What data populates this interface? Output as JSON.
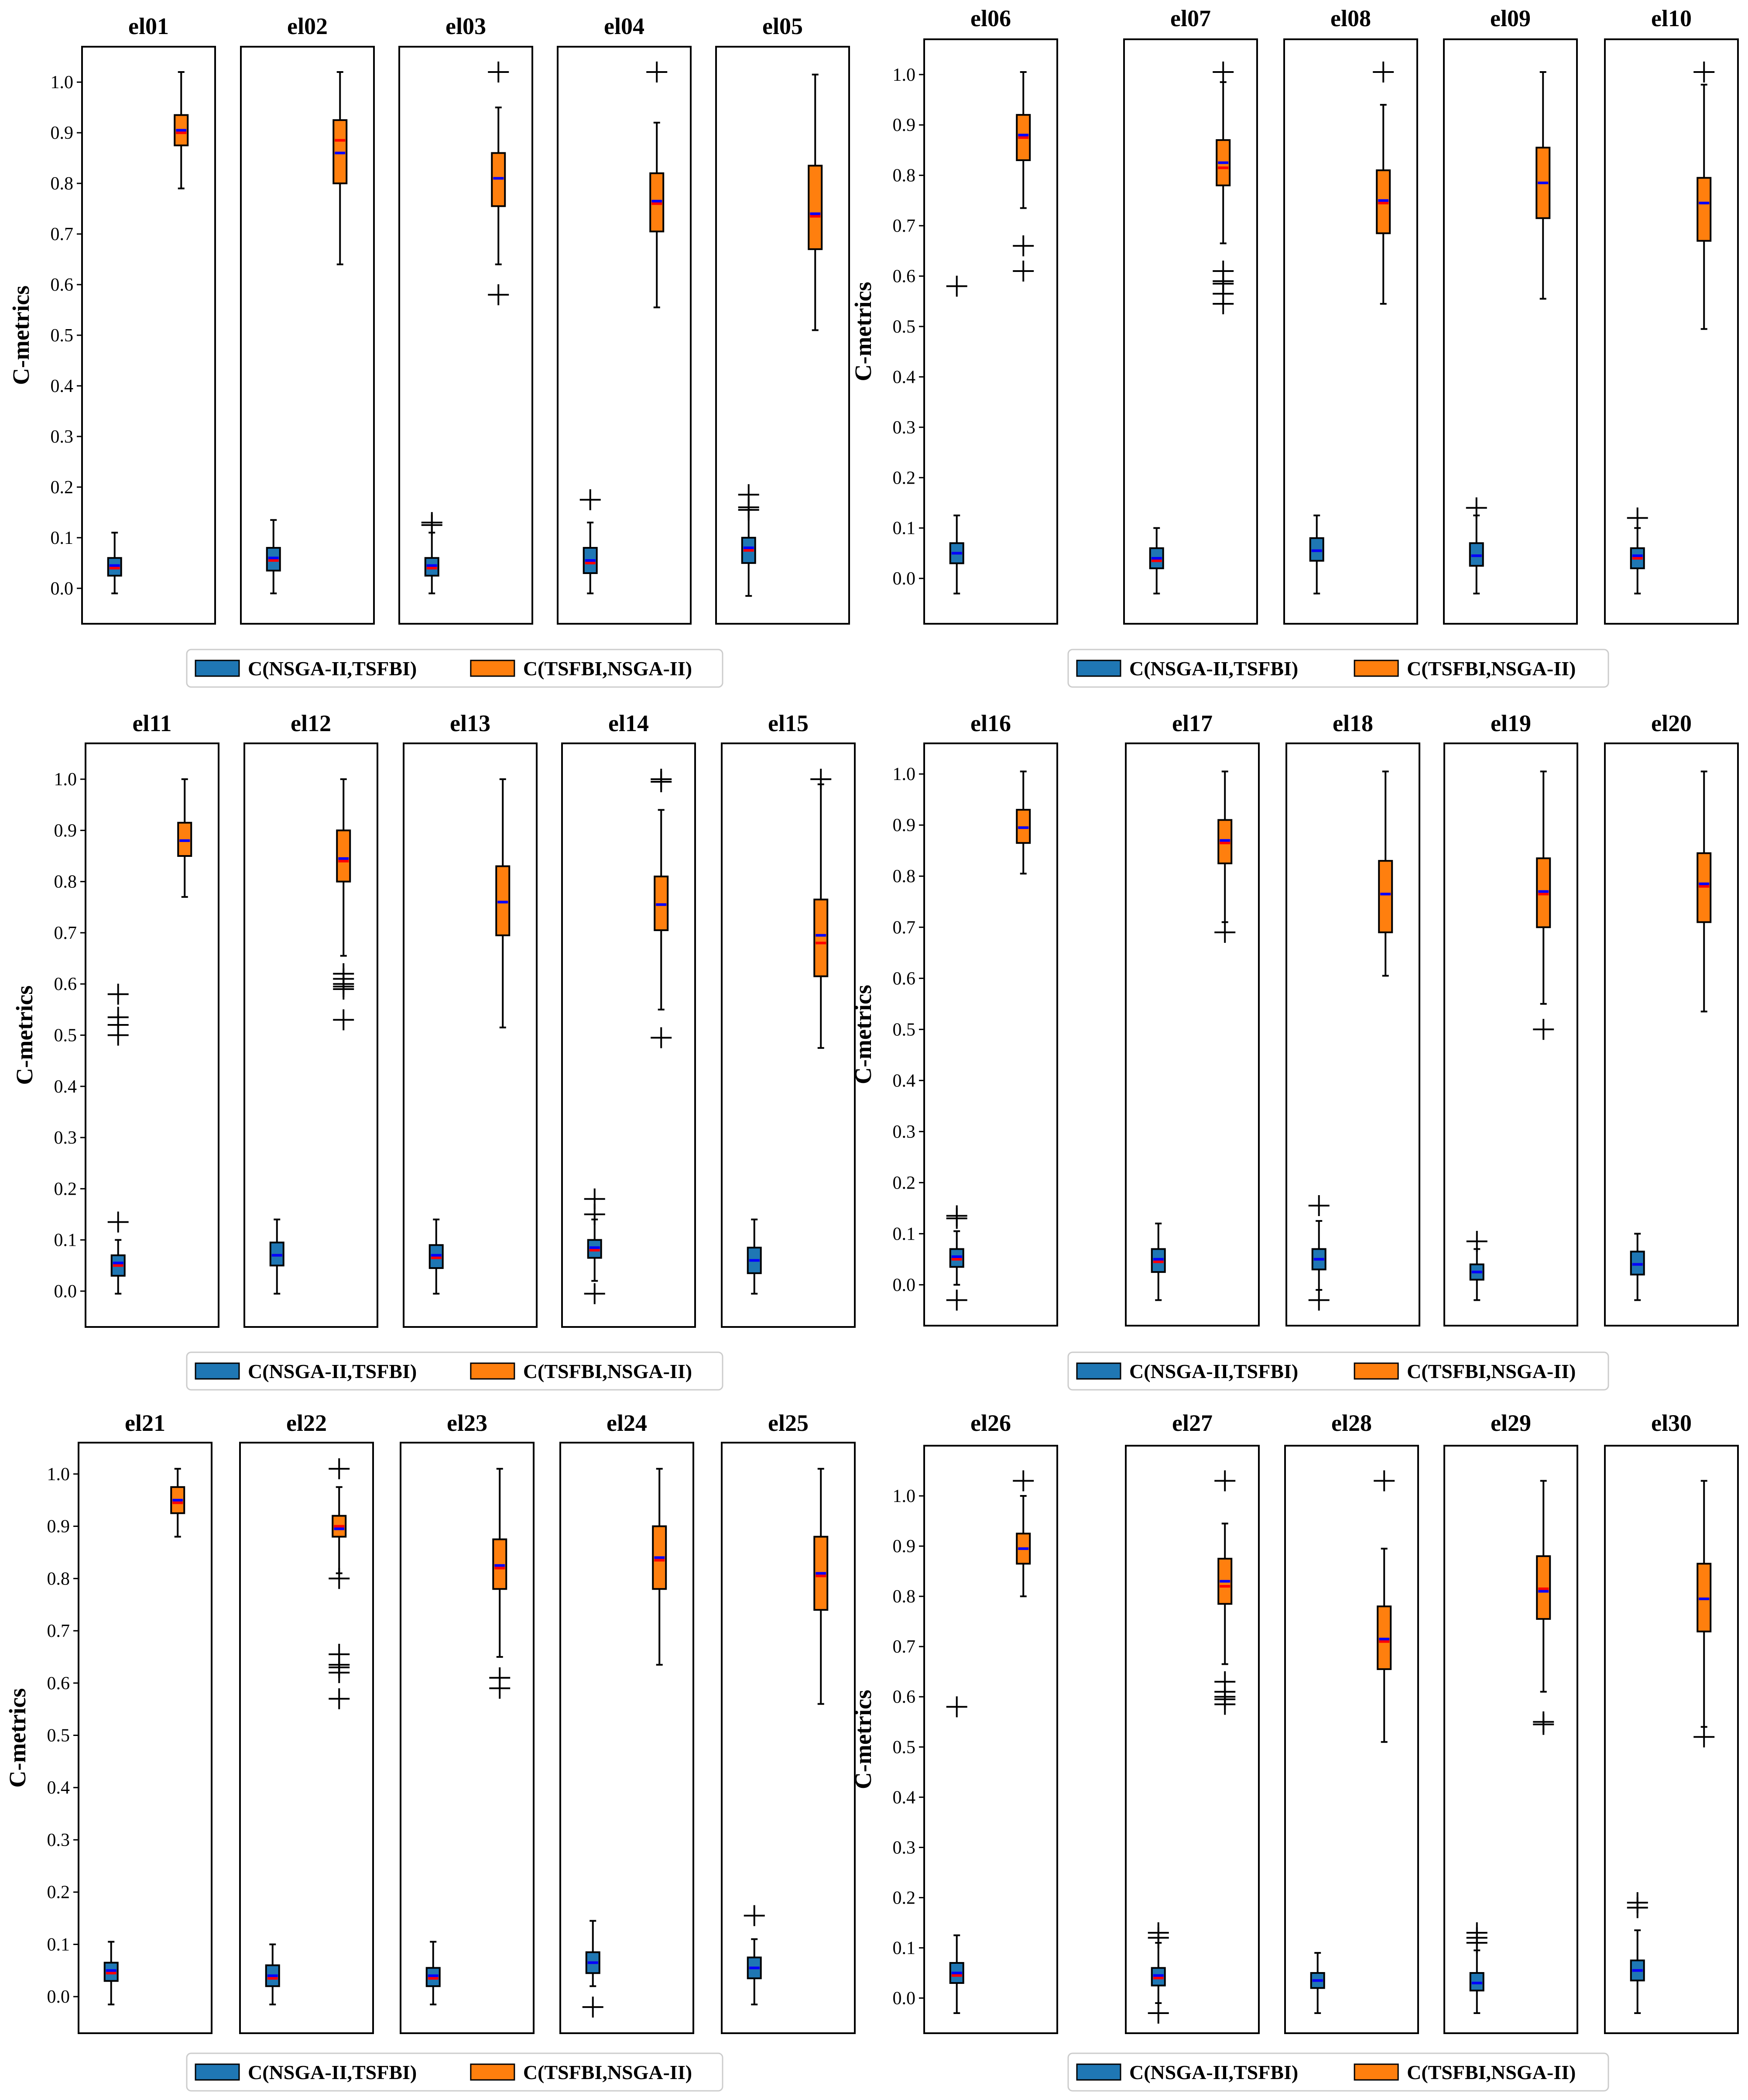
{
  "colors": {
    "series1": "#1f77b4",
    "series2": "#ff7f0e",
    "median": "#ff0000",
    "mean": "#0000ff",
    "stroke": "#000000"
  },
  "legend": {
    "series1": "C(NSGA-II,TSFBI)",
    "series2": "C(TSFBI,NSGA-II)"
  },
  "chart_data": [
    {
      "type": "box",
      "ylabel": "C-metrics",
      "yticks": [
        "0.0",
        "0.1",
        "0.2",
        "0.3",
        "0.4",
        "0.5",
        "0.6",
        "0.7",
        "0.8",
        "0.9",
        "1.0"
      ],
      "ylim": [
        -0.07,
        1.07
      ],
      "panels": [
        {
          "title": "el01",
          "box1": {
            "min": -0.01,
            "q1": 0.025,
            "med": 0.04,
            "mean": 0.045,
            "q3": 0.06,
            "max": 0.11,
            "out": []
          },
          "box2": {
            "min": 0.79,
            "q1": 0.875,
            "med": 0.9,
            "mean": 0.905,
            "q3": 0.935,
            "max": 1.02,
            "out": []
          }
        },
        {
          "title": "el02",
          "box1": {
            "min": -0.01,
            "q1": 0.035,
            "med": 0.055,
            "mean": 0.06,
            "q3": 0.08,
            "max": 0.135,
            "out": []
          },
          "box2": {
            "min": 0.64,
            "q1": 0.8,
            "med": 0.885,
            "mean": 0.86,
            "q3": 0.925,
            "max": 1.02,
            "out": []
          }
        },
        {
          "title": "el03",
          "box1": {
            "min": -0.01,
            "q1": 0.025,
            "med": 0.04,
            "mean": 0.045,
            "q3": 0.06,
            "max": 0.11,
            "out": [
              0.125,
              0.13
            ]
          },
          "box2": {
            "min": 0.64,
            "q1": 0.755,
            "med": 0.81,
            "mean": 0.81,
            "q3": 0.86,
            "max": 0.95,
            "out": [
              0.58,
              1.02
            ]
          }
        },
        {
          "title": "el04",
          "box1": {
            "min": -0.01,
            "q1": 0.03,
            "med": 0.05,
            "mean": 0.055,
            "q3": 0.08,
            "max": 0.13,
            "out": [
              0.175
            ]
          },
          "box2": {
            "min": 0.555,
            "q1": 0.705,
            "med": 0.76,
            "mean": 0.765,
            "q3": 0.82,
            "max": 0.92,
            "out": [
              1.02
            ]
          }
        },
        {
          "title": "el05",
          "box1": {
            "min": -0.015,
            "q1": 0.05,
            "med": 0.075,
            "mean": 0.08,
            "q3": 0.1,
            "max": 0.155,
            "out": [
              0.155,
              0.16,
              0.185
            ]
          },
          "box2": {
            "min": 0.51,
            "q1": 0.67,
            "med": 0.735,
            "mean": 0.74,
            "q3": 0.835,
            "max": 1.015,
            "out": []
          }
        }
      ]
    },
    {
      "type": "box",
      "ylabel": "C-metrics",
      "yticks": [
        "0.0",
        "0.1",
        "0.2",
        "0.3",
        "0.4",
        "0.5",
        "0.6",
        "0.7",
        "0.8",
        "0.9",
        "1.0"
      ],
      "ylim": [
        -0.09,
        1.07
      ],
      "panels": [
        {
          "title": "el06",
          "box1": {
            "min": -0.03,
            "q1": 0.03,
            "med": 0.05,
            "mean": 0.05,
            "q3": 0.07,
            "max": 0.125,
            "out": [
              0.58
            ]
          },
          "box2": {
            "min": 0.735,
            "q1": 0.83,
            "med": 0.875,
            "mean": 0.88,
            "q3": 0.92,
            "max": 1.005,
            "out": [
              0.61,
              0.66
            ]
          }
        },
        {
          "title": "el07",
          "box1": {
            "min": -0.03,
            "q1": 0.02,
            "med": 0.035,
            "mean": 0.04,
            "q3": 0.06,
            "max": 0.1,
            "out": []
          },
          "box2": {
            "min": 0.665,
            "q1": 0.78,
            "med": 0.815,
            "mean": 0.825,
            "q3": 0.87,
            "max": 0.985,
            "out": [
              0.545,
              0.565,
              0.585,
              0.59,
              0.61,
              1.005
            ]
          }
        },
        {
          "title": "el08",
          "box1": {
            "min": -0.03,
            "q1": 0.035,
            "med": 0.055,
            "mean": 0.055,
            "q3": 0.08,
            "max": 0.125,
            "out": []
          },
          "box2": {
            "min": 0.545,
            "q1": 0.685,
            "med": 0.745,
            "mean": 0.75,
            "q3": 0.81,
            "max": 0.94,
            "out": [
              1.005
            ]
          }
        },
        {
          "title": "el09",
          "box1": {
            "min": -0.03,
            "q1": 0.025,
            "med": 0.045,
            "mean": 0.045,
            "q3": 0.07,
            "max": 0.125,
            "out": [
              0.14
            ]
          },
          "box2": {
            "min": 0.555,
            "q1": 0.715,
            "med": 0.785,
            "mean": 0.785,
            "q3": 0.855,
            "max": 1.005,
            "out": []
          }
        },
        {
          "title": "el10",
          "box1": {
            "min": -0.03,
            "q1": 0.02,
            "med": 0.04,
            "mean": 0.045,
            "q3": 0.06,
            "max": 0.1,
            "out": [
              0.12
            ]
          },
          "box2": {
            "min": 0.495,
            "q1": 0.67,
            "med": 0.745,
            "mean": 0.745,
            "q3": 0.795,
            "max": 0.98,
            "out": [
              1.005
            ]
          }
        }
      ]
    },
    {
      "type": "box",
      "ylabel": "C-metrics",
      "yticks": [
        "0.0",
        "0.1",
        "0.2",
        "0.3",
        "0.4",
        "0.5",
        "0.6",
        "0.7",
        "0.8",
        "0.9",
        "1.0"
      ],
      "ylim": [
        -0.07,
        1.07
      ],
      "panels": [
        {
          "title": "el11",
          "box1": {
            "min": -0.005,
            "q1": 0.03,
            "med": 0.05,
            "mean": 0.055,
            "q3": 0.07,
            "max": 0.1,
            "out": [
              0.135,
              0.5,
              0.52,
              0.535,
              0.58
            ]
          },
          "box2": {
            "min": 0.77,
            "q1": 0.85,
            "med": 0.88,
            "mean": 0.88,
            "q3": 0.915,
            "max": 1.0,
            "out": []
          }
        },
        {
          "title": "el12",
          "box1": {
            "min": -0.005,
            "q1": 0.05,
            "med": 0.07,
            "mean": 0.07,
            "q3": 0.095,
            "max": 0.14,
            "out": []
          },
          "box2": {
            "min": 0.655,
            "q1": 0.8,
            "med": 0.84,
            "mean": 0.845,
            "q3": 0.9,
            "max": 1.0,
            "out": [
              0.53,
              0.59,
              0.595,
              0.6,
              0.61,
              0.62
            ]
          }
        },
        {
          "title": "el13",
          "box1": {
            "min": -0.005,
            "q1": 0.045,
            "med": 0.065,
            "mean": 0.07,
            "q3": 0.09,
            "max": 0.14,
            "out": []
          },
          "box2": {
            "min": 0.515,
            "q1": 0.695,
            "med": 0.76,
            "mean": 0.76,
            "q3": 0.83,
            "max": 1.0,
            "out": []
          }
        },
        {
          "title": "el14",
          "box1": {
            "min": 0.02,
            "q1": 0.065,
            "med": 0.08,
            "mean": 0.085,
            "q3": 0.1,
            "max": 0.14,
            "out": [
              -0.005,
              0.15,
              0.18
            ]
          },
          "box2": {
            "min": 0.55,
            "q1": 0.705,
            "med": 0.755,
            "mean": 0.755,
            "q3": 0.81,
            "max": 0.94,
            "out": [
              0.495,
              0.995,
              1.0
            ]
          }
        },
        {
          "title": "el15",
          "box1": {
            "min": -0.005,
            "q1": 0.035,
            "med": 0.06,
            "mean": 0.06,
            "q3": 0.085,
            "max": 0.14,
            "out": []
          },
          "box2": {
            "min": 0.475,
            "q1": 0.615,
            "med": 0.68,
            "mean": 0.695,
            "q3": 0.765,
            "max": 0.99,
            "out": [
              1.0
            ]
          }
        }
      ]
    },
    {
      "type": "box",
      "ylabel": "C-metrics",
      "yticks": [
        "0.0",
        "0.1",
        "0.2",
        "0.3",
        "0.4",
        "0.5",
        "0.6",
        "0.7",
        "0.8",
        "0.9",
        "1.0"
      ],
      "ylim": [
        -0.08,
        1.06
      ],
      "panels": [
        {
          "title": "el16",
          "box1": {
            "min": 0.0,
            "q1": 0.035,
            "med": 0.05,
            "mean": 0.055,
            "q3": 0.07,
            "max": 0.105,
            "out": [
              -0.03,
              0.13,
              0.135
            ]
          },
          "box2": {
            "min": 0.805,
            "q1": 0.865,
            "med": 0.895,
            "mean": 0.895,
            "q3": 0.93,
            "max": 1.005,
            "out": []
          }
        },
        {
          "title": "el17",
          "box1": {
            "min": -0.03,
            "q1": 0.025,
            "med": 0.045,
            "mean": 0.05,
            "q3": 0.07,
            "max": 0.12,
            "out": []
          },
          "box2": {
            "min": 0.71,
            "q1": 0.825,
            "med": 0.865,
            "mean": 0.87,
            "q3": 0.91,
            "max": 1.005,
            "out": [
              0.69
            ]
          }
        },
        {
          "title": "el18",
          "box1": {
            "min": -0.01,
            "q1": 0.03,
            "med": 0.05,
            "mean": 0.05,
            "q3": 0.07,
            "max": 0.125,
            "out": [
              -0.03,
              0.155
            ]
          },
          "box2": {
            "min": 0.605,
            "q1": 0.69,
            "med": 0.765,
            "mean": 0.765,
            "q3": 0.83,
            "max": 1.005,
            "out": []
          }
        },
        {
          "title": "el19",
          "box1": {
            "min": -0.03,
            "q1": 0.01,
            "med": 0.025,
            "mean": 0.025,
            "q3": 0.04,
            "max": 0.07,
            "out": [
              0.085
            ]
          },
          "box2": {
            "min": 0.55,
            "q1": 0.7,
            "med": 0.765,
            "mean": 0.77,
            "q3": 0.835,
            "max": 1.005,
            "out": [
              0.5
            ]
          }
        },
        {
          "title": "el20",
          "box1": {
            "min": -0.03,
            "q1": 0.02,
            "med": 0.04,
            "mean": 0.04,
            "q3": 0.065,
            "max": 0.1,
            "out": []
          },
          "box2": {
            "min": 0.535,
            "q1": 0.71,
            "med": 0.78,
            "mean": 0.785,
            "q3": 0.845,
            "max": 1.005,
            "out": []
          }
        }
      ]
    },
    {
      "type": "box",
      "ylabel": "C-metrics",
      "yticks": [
        "0.0",
        "0.1",
        "0.2",
        "0.3",
        "0.4",
        "0.5",
        "0.6",
        "0.7",
        "0.8",
        "0.9",
        "1.0"
      ],
      "ylim": [
        -0.07,
        1.06
      ],
      "panels": [
        {
          "title": "el21",
          "box1": {
            "min": -0.015,
            "q1": 0.03,
            "med": 0.045,
            "mean": 0.05,
            "q3": 0.065,
            "max": 0.105,
            "out": []
          },
          "box2": {
            "min": 0.88,
            "q1": 0.925,
            "med": 0.945,
            "mean": 0.95,
            "q3": 0.975,
            "max": 1.01,
            "out": []
          }
        },
        {
          "title": "el22",
          "box1": {
            "min": -0.015,
            "q1": 0.02,
            "med": 0.035,
            "mean": 0.04,
            "q3": 0.06,
            "max": 0.1,
            "out": []
          },
          "box2": {
            "min": 0.81,
            "q1": 0.88,
            "med": 0.9,
            "mean": 0.895,
            "q3": 0.92,
            "max": 0.975,
            "out": [
              0.57,
              0.62,
              0.63,
              0.635,
              0.655,
              0.8,
              1.01
            ]
          }
        },
        {
          "title": "el23",
          "box1": {
            "min": -0.015,
            "q1": 0.02,
            "med": 0.035,
            "mean": 0.04,
            "q3": 0.055,
            "max": 0.105,
            "out": []
          },
          "box2": {
            "min": 0.65,
            "q1": 0.78,
            "med": 0.82,
            "mean": 0.825,
            "q3": 0.875,
            "max": 1.01,
            "out": [
              0.59,
              0.61
            ]
          }
        },
        {
          "title": "el24",
          "box1": {
            "min": 0.02,
            "q1": 0.045,
            "med": 0.065,
            "mean": 0.065,
            "q3": 0.085,
            "max": 0.145,
            "out": [
              -0.02
            ]
          },
          "box2": {
            "min": 0.635,
            "q1": 0.78,
            "med": 0.835,
            "mean": 0.84,
            "q3": 0.9,
            "max": 1.01,
            "out": []
          }
        },
        {
          "title": "el25",
          "box1": {
            "min": -0.015,
            "q1": 0.035,
            "med": 0.055,
            "mean": 0.055,
            "q3": 0.075,
            "max": 0.11,
            "out": [
              0.155
            ]
          },
          "box2": {
            "min": 0.56,
            "q1": 0.74,
            "med": 0.805,
            "mean": 0.81,
            "q3": 0.88,
            "max": 1.01,
            "out": []
          }
        }
      ]
    },
    {
      "type": "box",
      "ylabel": "C-metrics",
      "yticks": [
        "0.0",
        "0.1",
        "0.2",
        "0.3",
        "0.4",
        "0.5",
        "0.6",
        "0.7",
        "0.8",
        "0.9",
        "1.0"
      ],
      "ylim": [
        -0.07,
        1.1
      ],
      "panels": [
        {
          "title": "el26",
          "box1": {
            "min": -0.03,
            "q1": 0.03,
            "med": 0.045,
            "mean": 0.05,
            "q3": 0.07,
            "max": 0.125,
            "out": [
              0.58
            ]
          },
          "box2": {
            "min": 0.8,
            "q1": 0.865,
            "med": 0.895,
            "mean": 0.895,
            "q3": 0.925,
            "max": 1.0,
            "out": [
              1.03
            ]
          }
        },
        {
          "title": "el27",
          "box1": {
            "min": -0.01,
            "q1": 0.025,
            "med": 0.04,
            "mean": 0.045,
            "q3": 0.06,
            "max": 0.11,
            "out": [
              -0.03,
              0.12,
              0.13
            ]
          },
          "box2": {
            "min": 0.665,
            "q1": 0.785,
            "med": 0.82,
            "mean": 0.83,
            "q3": 0.875,
            "max": 0.945,
            "out": [
              0.585,
              0.595,
              0.6,
              0.61,
              0.63,
              1.03
            ]
          }
        },
        {
          "title": "el28",
          "box1": {
            "min": -0.03,
            "q1": 0.02,
            "med": 0.035,
            "mean": 0.035,
            "q3": 0.05,
            "max": 0.09,
            "out": []
          },
          "box2": {
            "min": 0.51,
            "q1": 0.655,
            "med": 0.71,
            "mean": 0.715,
            "q3": 0.78,
            "max": 0.895,
            "out": [
              1.03
            ]
          }
        },
        {
          "title": "el29",
          "box1": {
            "min": -0.03,
            "q1": 0.015,
            "med": 0.03,
            "mean": 0.03,
            "q3": 0.05,
            "max": 0.095,
            "out": [
              0.11,
              0.12,
              0.13
            ]
          },
          "box2": {
            "min": 0.61,
            "q1": 0.755,
            "med": 0.815,
            "mean": 0.81,
            "q3": 0.88,
            "max": 1.03,
            "out": [
              0.545,
              0.55
            ]
          }
        },
        {
          "title": "el30",
          "box1": {
            "min": -0.03,
            "q1": 0.035,
            "med": 0.055,
            "mean": 0.055,
            "q3": 0.075,
            "max": 0.135,
            "out": [
              0.18,
              0.19
            ]
          },
          "box2": {
            "min": 0.54,
            "q1": 0.73,
            "med": 0.795,
            "mean": 0.795,
            "q3": 0.865,
            "max": 1.03,
            "out": [
              0.52
            ]
          }
        }
      ]
    }
  ]
}
